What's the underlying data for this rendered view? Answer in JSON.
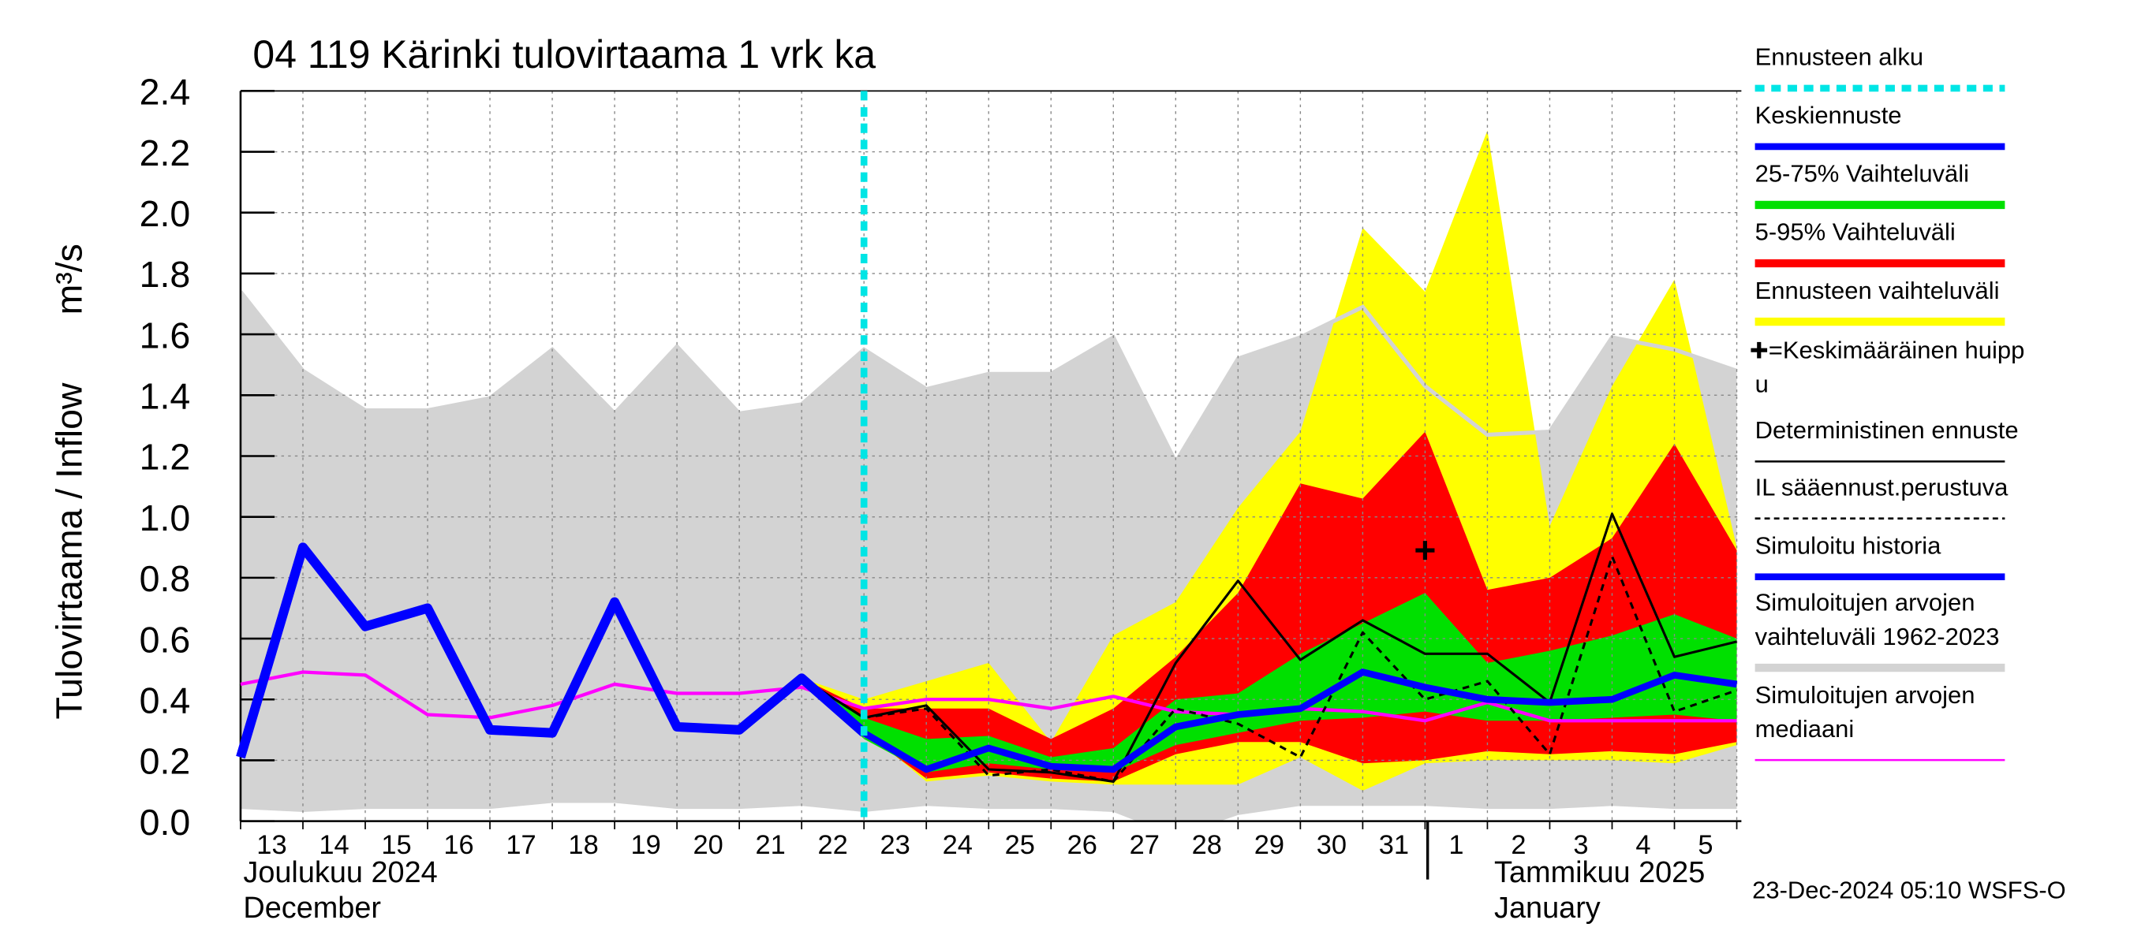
{
  "chart_data": {
    "type": "line",
    "title": "04 119 Kärinki tulovirtaama 1 vrk ka",
    "y_label": "Tulovirtaama / Inflow",
    "y_unit": "m³/s",
    "month_labels": [
      "Joulukuu  2024",
      "December",
      "Tammikuu  2025",
      "January"
    ],
    "footer": "23-Dec-2024 05:10 WSFS-O",
    "categories": [
      "13",
      "14",
      "15",
      "16",
      "17",
      "18",
      "19",
      "20",
      "21",
      "22",
      "23",
      "24",
      "25",
      "26",
      "27",
      "28",
      "29",
      "30",
      "31",
      "1",
      "2",
      "3",
      "4",
      "5",
      null
    ],
    "ylim": [
      0,
      2.4
    ],
    "yticks": [
      {
        "value": 0,
        "label": "0.0"
      },
      0.2,
      0.4,
      0.6,
      0.8,
      {
        "value": 1,
        "label": "1.0"
      },
      1.2,
      1.4,
      1.6,
      1.8,
      {
        "value": 2,
        "label": "2.0"
      },
      2.2,
      2.4
    ],
    "grid": true,
    "forecast_start": {
      "name": "Ennusteen alku",
      "color": "#00e5e5",
      "at": "23"
    },
    "series": [
      {
        "kind": "line",
        "name": "Keskiennuste",
        "color": "#0000ff",
        "width": 5,
        "values": [
          null,
          null,
          null,
          null,
          null,
          null,
          null,
          null,
          null,
          0.47,
          0.29,
          0.17,
          0.24,
          0.18,
          0.17,
          0.31,
          0.35,
          0.37,
          0.49,
          0.44,
          0.4,
          0.39,
          0.4,
          0.48,
          0.45
        ]
      },
      {
        "kind": "band",
        "name": "25-75% Vaihteluväli",
        "color": "#00e000",
        "low": [
          null,
          null,
          null,
          null,
          null,
          null,
          null,
          null,
          null,
          0.47,
          0.27,
          0.16,
          0.19,
          0.17,
          0.16,
          0.25,
          0.29,
          0.33,
          0.34,
          0.36,
          0.33,
          0.33,
          0.34,
          0.35,
          0.33
        ],
        "high": [
          null,
          null,
          null,
          null,
          null,
          null,
          null,
          null,
          null,
          0.47,
          0.34,
          0.27,
          0.28,
          0.21,
          0.24,
          0.4,
          0.42,
          0.55,
          0.65,
          0.75,
          0.52,
          0.56,
          0.61,
          0.68,
          0.6
        ]
      },
      {
        "kind": "band",
        "name": "5-95% Vaihteluväli",
        "color": "#ff0000",
        "low": [
          null,
          null,
          null,
          null,
          null,
          null,
          null,
          null,
          null,
          0.47,
          0.29,
          0.14,
          0.16,
          0.14,
          0.13,
          0.22,
          0.26,
          0.26,
          0.19,
          0.2,
          0.23,
          0.22,
          0.23,
          0.22,
          0.26
        ],
        "high": [
          null,
          null,
          null,
          null,
          null,
          null,
          null,
          null,
          null,
          0.47,
          0.37,
          0.37,
          0.37,
          0.27,
          0.37,
          0.54,
          0.75,
          1.11,
          1.06,
          1.28,
          0.76,
          0.8,
          0.93,
          1.24,
          0.89
        ]
      },
      {
        "kind": "band",
        "name": "Ennusteen vaihteluväli",
        "color": "#ffff00",
        "low": [
          null,
          null,
          null,
          null,
          null,
          null,
          null,
          null,
          null,
          0.47,
          0.3,
          0.13,
          0.15,
          0.13,
          0.12,
          0.12,
          0.12,
          0.21,
          0.1,
          0.19,
          0.2,
          0.2,
          0.2,
          0.19,
          0.25
        ],
        "high": [
          null,
          null,
          null,
          null,
          null,
          null,
          null,
          null,
          null,
          0.47,
          0.4,
          0.46,
          0.52,
          0.26,
          0.61,
          0.72,
          1.03,
          1.28,
          1.95,
          1.74,
          2.27,
          0.97,
          1.43,
          1.78,
          0.9
        ]
      },
      {
        "kind": "marker",
        "name": [
          "=Keskimääräinen huipp",
          "u"
        ],
        "color": "#000000",
        "x": "1",
        "y": 0.89
      },
      {
        "kind": "line",
        "name": "Deterministinen ennuste",
        "color": "#000000",
        "width": 1.8,
        "values": [
          null,
          null,
          null,
          null,
          null,
          null,
          null,
          null,
          null,
          0.47,
          0.34,
          0.38,
          0.17,
          0.16,
          0.13,
          0.52,
          0.79,
          0.53,
          0.66,
          0.55,
          0.55,
          0.39,
          1.01,
          0.54,
          0.59
        ]
      },
      {
        "kind": "line",
        "name": "IL sääennust.perustuva",
        "color": "#000000",
        "width": 1.8,
        "dashed": true,
        "values": [
          null,
          null,
          null,
          null,
          null,
          null,
          null,
          null,
          null,
          0.47,
          0.34,
          0.37,
          0.15,
          0.17,
          0.13,
          0.37,
          0.32,
          0.21,
          0.62,
          0.4,
          0.46,
          0.22,
          0.87,
          0.36,
          0.43
        ]
      },
      {
        "kind": "line",
        "name": "Simuloitu historia",
        "color": "#0000ff",
        "width": 7,
        "values": [
          0.21,
          0.9,
          0.64,
          0.7,
          0.3,
          0.29,
          0.72,
          0.31,
          0.3,
          0.47,
          0.29,
          null,
          null,
          null,
          null,
          null,
          null,
          null,
          null,
          null,
          null,
          null,
          null,
          null,
          null
        ]
      },
      {
        "kind": "band",
        "name": [
          "Simuloitujen arvojen",
          "vaihteluväli 1962-2023"
        ],
        "color": "#d3d3d3",
        "low": [
          0.04,
          0.03,
          0.04,
          0.04,
          0.04,
          0.06,
          0.06,
          0.04,
          0.04,
          0.05,
          0.03,
          0.05,
          0.04,
          0.04,
          0.03,
          -0.05,
          0.02,
          0.05,
          0.05,
          0.05,
          0.04,
          0.04,
          0.05,
          0.04,
          0.04
        ],
        "high": [
          1.74,
          1.48,
          1.35,
          1.35,
          1.39,
          1.55,
          1.34,
          1.56,
          1.34,
          1.37,
          1.55,
          1.42,
          1.47,
          1.47,
          1.59,
          1.18,
          1.52,
          1.59,
          1.69,
          1.43,
          1.27,
          1.28,
          1.59,
          1.55,
          1.48
        ]
      },
      {
        "kind": "line",
        "name": [
          "Simuloitujen arvojen",
          "mediaani"
        ],
        "color": "#ff00ff",
        "width": 2.5,
        "values": [
          0.45,
          0.49,
          0.48,
          0.35,
          0.34,
          0.38,
          0.45,
          0.42,
          0.42,
          0.44,
          0.37,
          0.4,
          0.4,
          0.37,
          0.41,
          0.36,
          0.35,
          0.37,
          0.36,
          0.33,
          0.39,
          0.33,
          0.33,
          0.33,
          0.33
        ]
      }
    ]
  }
}
